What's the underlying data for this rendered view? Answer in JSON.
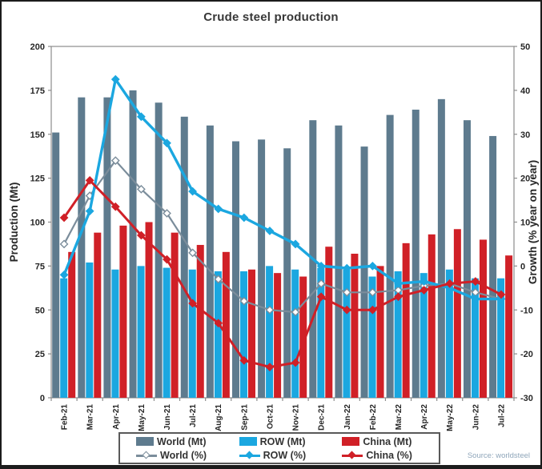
{
  "header": {
    "title": "Crude steel production"
  },
  "footer": {
    "source": "Source: worldsteel"
  },
  "chart_data": {
    "type": "bar",
    "subtype": "combo bar+line, dual axis",
    "title": "Crude steel production",
    "grid": false,
    "legend_position": "bottom",
    "categories": [
      "Feb-21",
      "Mar-21",
      "Apr-21",
      "May-21",
      "Jun-21",
      "Jul-21",
      "Aug-21",
      "Sep-21",
      "Oct-21",
      "Nov-21",
      "Dec-21",
      "Jan-22",
      "Feb-22",
      "Mar-22",
      "Apr-22",
      "May-22",
      "Jun-22",
      "Jul-22"
    ],
    "left_axis": {
      "label": "Production (Mt)",
      "min": 0,
      "max": 200,
      "step": 25
    },
    "right_axis": {
      "label": "Growth (% year on year)",
      "min": -30,
      "max": 50,
      "step": 10
    },
    "bar_series": [
      {
        "name": "World (Mt)",
        "color": "#5e7b8e",
        "axis": "left",
        "values": [
          151,
          171,
          171,
          175,
          168,
          160,
          155,
          146,
          147,
          142,
          158,
          155,
          143,
          161,
          164,
          170,
          158,
          149
        ]
      },
      {
        "name": "ROW (Mt)",
        "color": "#1ba7e0",
        "axis": "left",
        "values": [
          68,
          77,
          73,
          75,
          74,
          73,
          72,
          72,
          75,
          73,
          74,
          73,
          69,
          72,
          71,
          73,
          68,
          68
        ]
      },
      {
        "name": "China (Mt)",
        "color": "#d02027",
        "axis": "left",
        "values": [
          83,
          94,
          98,
          100,
          94,
          87,
          83,
          73,
          71,
          69,
          86,
          82,
          75,
          88,
          93,
          96,
          90,
          81
        ]
      }
    ],
    "line_series": [
      {
        "name": "World (%)",
        "color": "#7b8d9b",
        "axis": "right",
        "marker": "open-diamond",
        "width": 2.2,
        "values": [
          5,
          16,
          24,
          17.5,
          12,
          3,
          -3,
          -8,
          -10,
          -10.5,
          -4,
          -6,
          -6,
          -5.5,
          -4.5,
          -4,
          -6,
          -7.5
        ]
      },
      {
        "name": "ROW (%)",
        "color": "#1ba7e0",
        "axis": "right",
        "marker": "diamond",
        "width": 3.4,
        "values": [
          -2,
          12.5,
          42.5,
          34,
          28,
          17,
          13,
          11,
          8,
          5,
          0,
          -0.5,
          0,
          -4,
          -3.5,
          -5,
          -7.5,
          -7.5
        ]
      },
      {
        "name": "China (%)",
        "color": "#d02027",
        "axis": "right",
        "marker": "diamond",
        "width": 3,
        "values": [
          11,
          19.5,
          13.5,
          7,
          1.5,
          -8.5,
          -13,
          -21.5,
          -23,
          -22,
          -7,
          -10,
          -10,
          -7,
          -5.5,
          -4,
          -3.5,
          -6.5
        ]
      }
    ]
  },
  "colors": {
    "frame": "#8c8c8c",
    "tick_text": "#262626",
    "title_text": "#383838",
    "source_text": "#8fa6ba"
  }
}
